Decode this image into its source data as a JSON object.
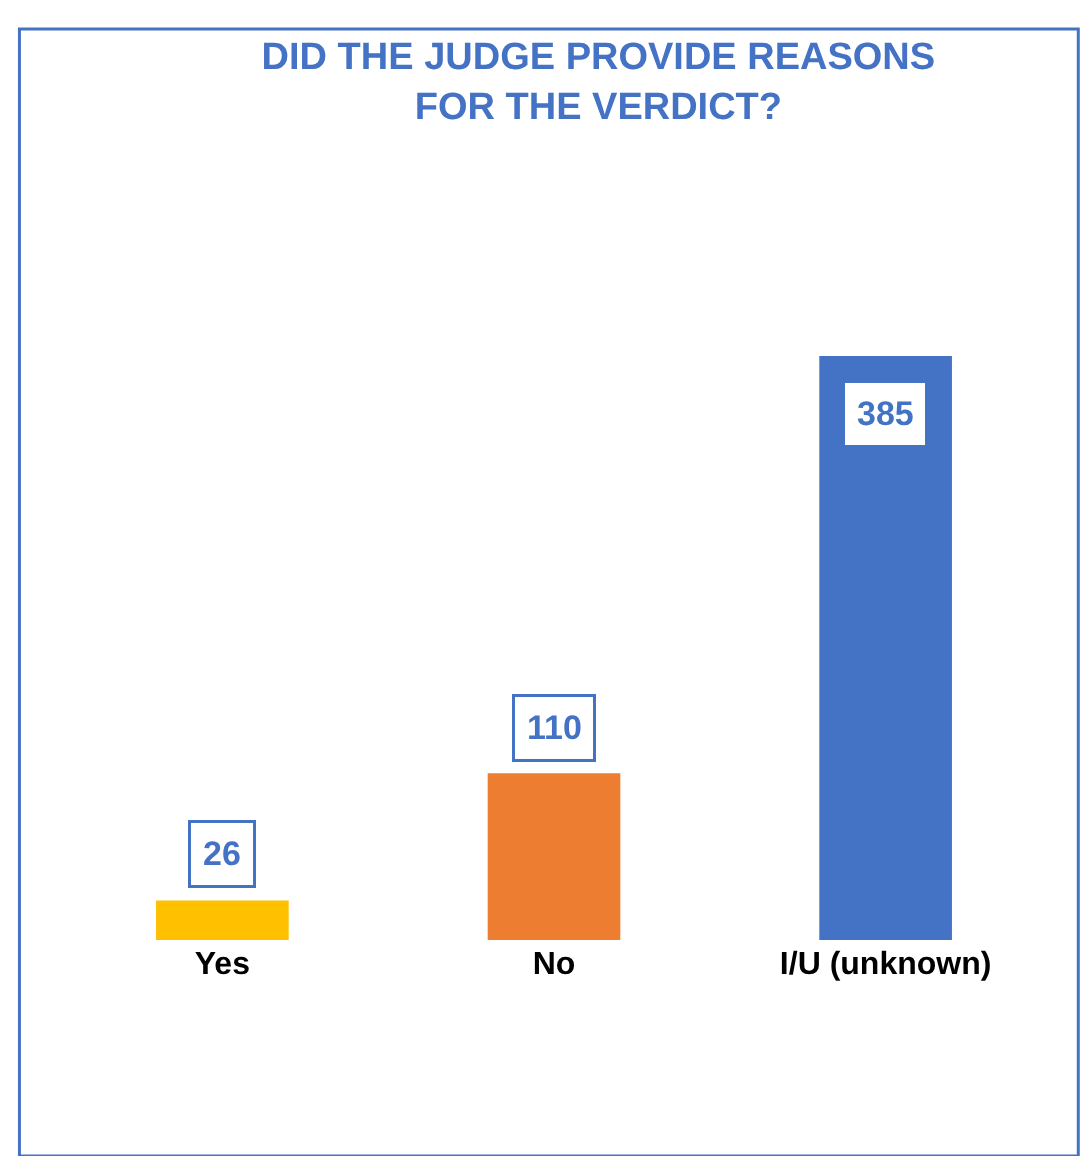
{
  "chart_data": {
    "type": "bar",
    "title": "DID THE JUDGE PROVIDE REASONS\nFOR THE VERDICT?",
    "categories": [
      "Yes",
      "No",
      "I/U (unknown)"
    ],
    "values": [
      26,
      110,
      385
    ],
    "colors": [
      "#ffc000",
      "#ed7d31",
      "#4472c4"
    ],
    "data_labels": true
  }
}
